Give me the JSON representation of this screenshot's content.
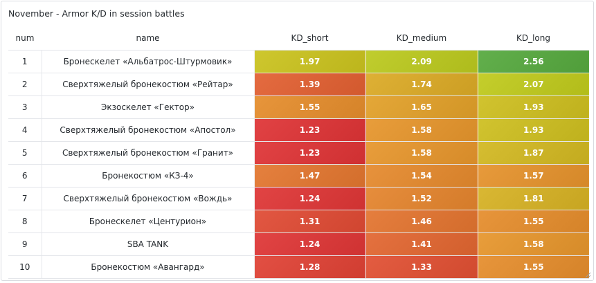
{
  "panel": {
    "title": "November - Armor K/D in session battles"
  },
  "table": {
    "columns": [
      "num",
      "name",
      "KD_short",
      "KD_medium",
      "KD_long"
    ],
    "rows": [
      {
        "num": "1",
        "name": "Бронескелет «Альбатрос-Штурмовик»",
        "short": "1.97",
        "medium": "2.09",
        "long": "2.56"
      },
      {
        "num": "2",
        "name": "Сверхтяжелый бронекостюм «Рейтар»",
        "short": "1.39",
        "medium": "1.74",
        "long": "2.07"
      },
      {
        "num": "3",
        "name": "Экзоскелет «Гектор»",
        "short": "1.55",
        "medium": "1.65",
        "long": "1.93"
      },
      {
        "num": "4",
        "name": "Сверхтяжелый бронекостюм «Апостол»",
        "short": "1.23",
        "medium": "1.58",
        "long": "1.93"
      },
      {
        "num": "5",
        "name": "Сверхтяжелый бронекостюм «Гранит»",
        "short": "1.23",
        "medium": "1.58",
        "long": "1.87"
      },
      {
        "num": "6",
        "name": "Бронекостюм «КЗ-4»",
        "short": "1.47",
        "medium": "1.54",
        "long": "1.57"
      },
      {
        "num": "7",
        "name": "Сверхтяжелый бронекостюм «Вождь»",
        "short": "1.24",
        "medium": "1.52",
        "long": "1.81"
      },
      {
        "num": "8",
        "name": "Бронескелет «Центурион»",
        "short": "1.31",
        "medium": "1.46",
        "long": "1.55"
      },
      {
        "num": "9",
        "name": "SBA TANK",
        "short": "1.24",
        "medium": "1.41",
        "long": "1.58"
      },
      {
        "num": "10",
        "name": "Бронекостюм «Авангард»",
        "short": "1.28",
        "medium": "1.33",
        "long": "1.55"
      }
    ]
  },
  "colors": {
    "high": "#5aad4f",
    "mid_high": "#c8cf2b",
    "mid": "#e8a23a",
    "low": "#e03a45"
  }
}
